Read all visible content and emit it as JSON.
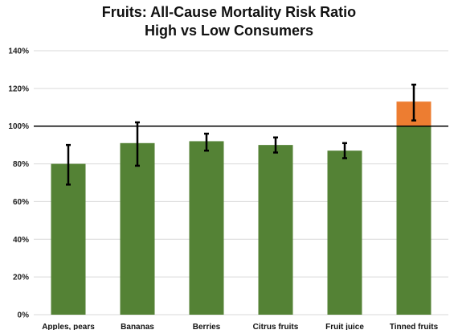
{
  "chart_data": {
    "type": "bar",
    "title": "Fruits: All-Cause Mortality Risk Ratio",
    "subtitle": "High vs Low Consumers",
    "categories": [
      "Apples, pears",
      "Bananas",
      "Berries",
      "Citrus fruits",
      "Fruit juice",
      "Tinned fruits"
    ],
    "values": [
      80,
      91,
      92,
      90,
      87,
      113
    ],
    "error_low": [
      69,
      79,
      87,
      86,
      83,
      103
    ],
    "error_high": [
      90,
      102,
      96,
      94,
      91,
      122
    ],
    "reference_line": 100,
    "ylim": [
      0,
      140
    ],
    "yticks": [
      0,
      20,
      40,
      60,
      80,
      100,
      120,
      140
    ],
    "ytick_labels": [
      "0%",
      "20%",
      "40%",
      "60%",
      "80%",
      "100%",
      "120%",
      "140%"
    ],
    "xlabel": "",
    "ylabel": "",
    "grid": true,
    "colors": {
      "bar": "#548235",
      "excess": "#ED7D31",
      "grid": "#D9D9D9",
      "reference": "#000000",
      "error_bar": "#000000"
    }
  }
}
